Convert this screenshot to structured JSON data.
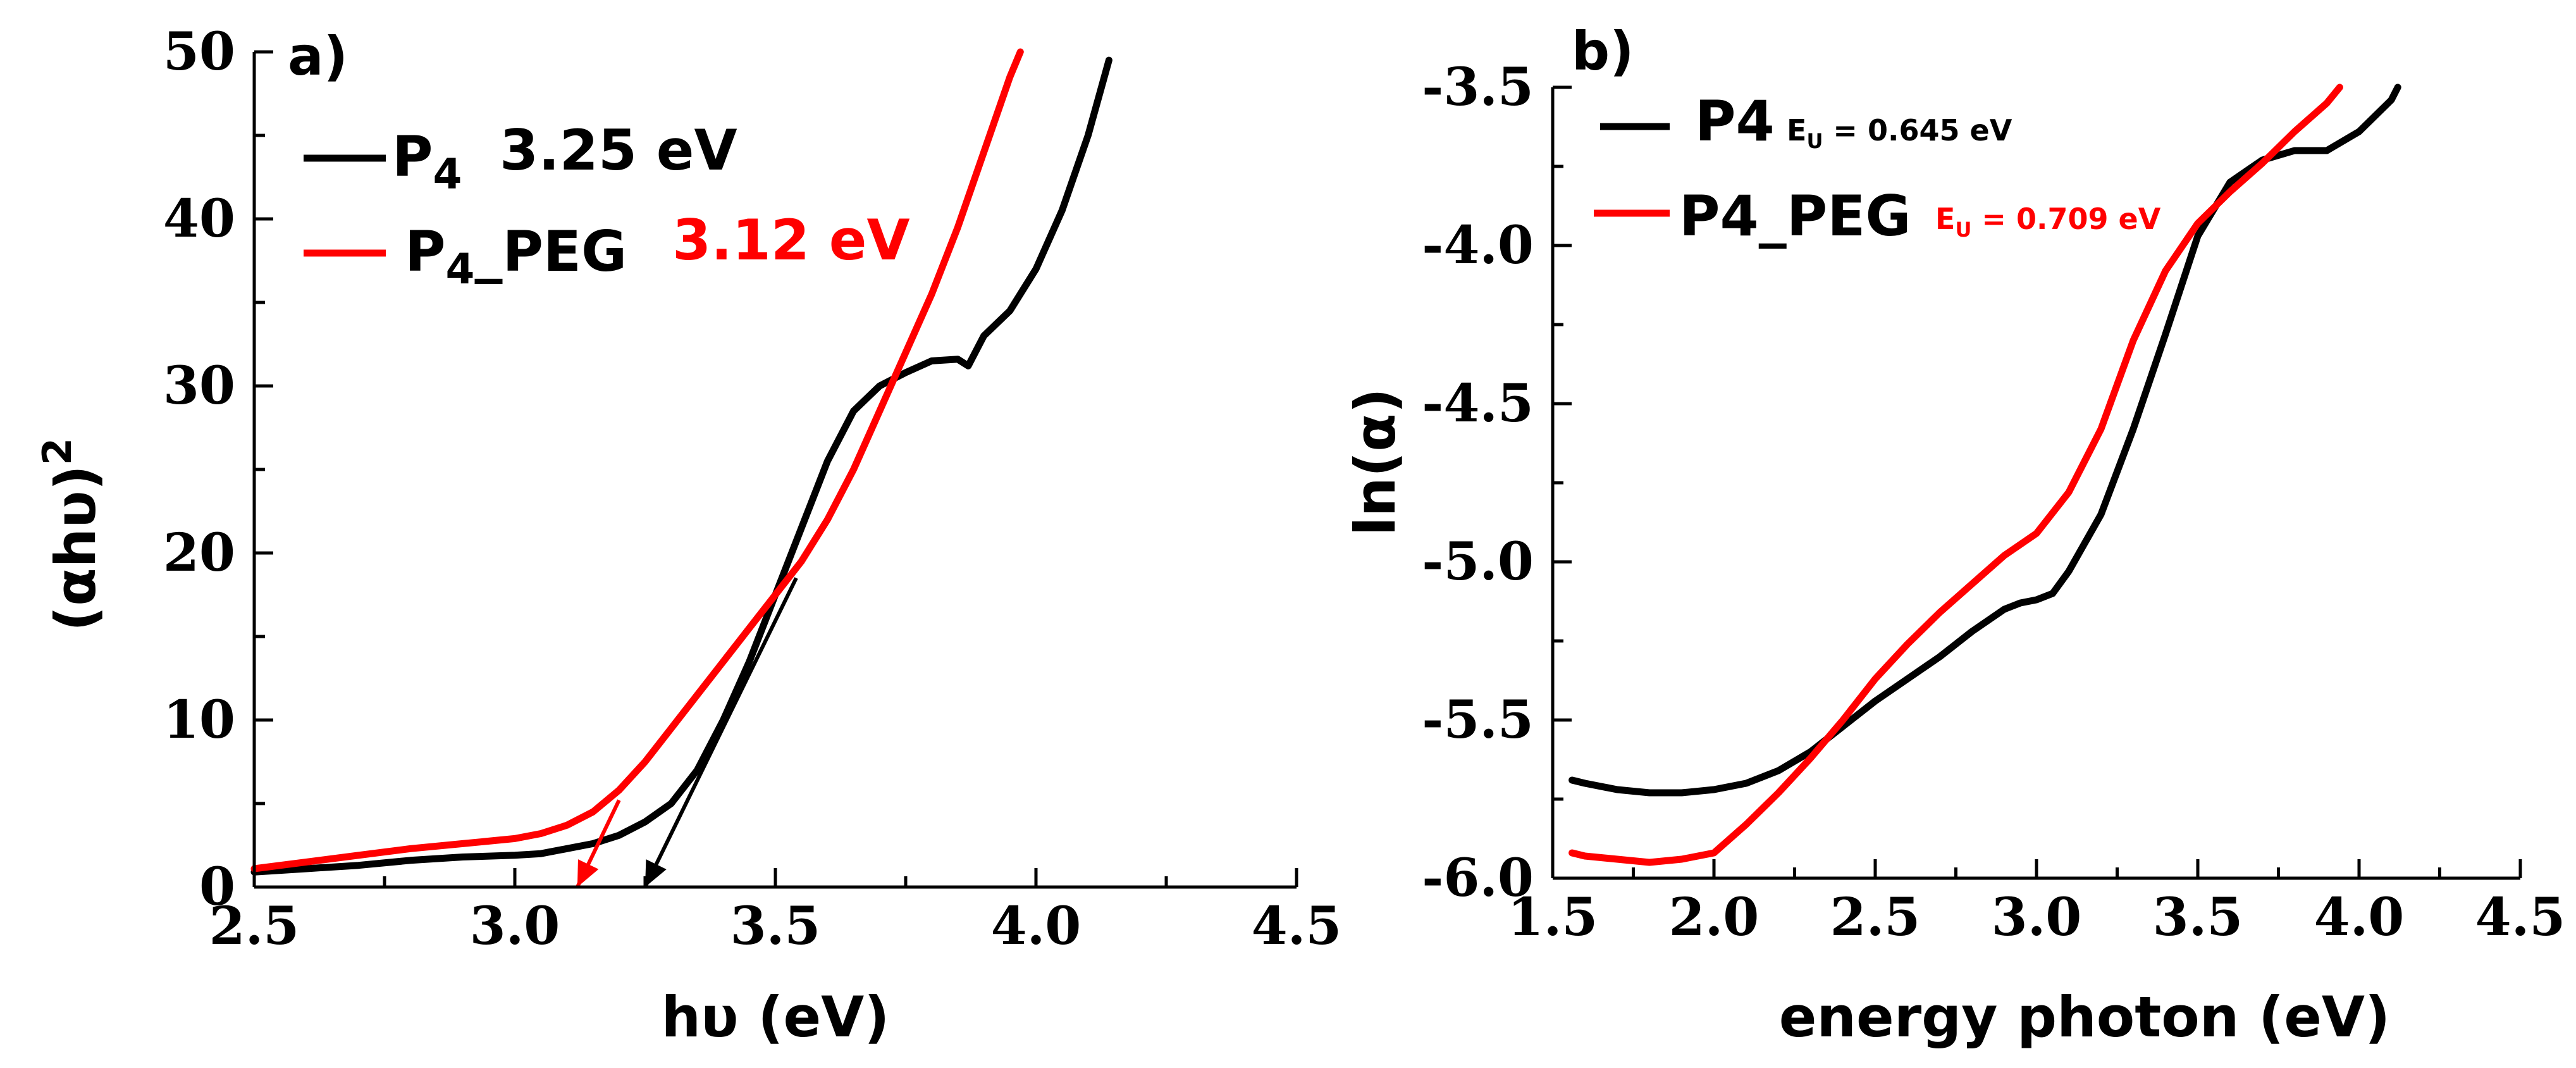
{
  "chart_data": [
    {
      "type": "line",
      "panel_label": "a)",
      "xlabel": "hυ (eV)",
      "ylabel_base": "(αhυ)",
      "ylabel_sup": "2",
      "xlim": [
        2.5,
        4.5
      ],
      "ylim": [
        0,
        50
      ],
      "xticks": [
        "2.5",
        "3.0",
        "3.5",
        "4.0",
        "4.5"
      ],
      "yticks": [
        "0",
        "10",
        "20",
        "30",
        "40",
        "50"
      ],
      "grid": false,
      "legend_position": "top-left",
      "series": [
        {
          "name": "P4",
          "name_main": "P",
          "name_sub": "4",
          "name_suffix": "",
          "value_label": "3.25 eV",
          "color": "#000000",
          "x": [
            2.5,
            2.6,
            2.7,
            2.8,
            2.9,
            3.0,
            3.05,
            3.1,
            3.15,
            3.2,
            3.25,
            3.3,
            3.35,
            3.4,
            3.45,
            3.5,
            3.55,
            3.6,
            3.65,
            3.7,
            3.75,
            3.8,
            3.85,
            3.87,
            3.9,
            3.95,
            4.0,
            4.05,
            4.1,
            4.14
          ],
          "y": [
            0.9,
            1.1,
            1.3,
            1.6,
            1.8,
            1.9,
            2.0,
            2.3,
            2.6,
            3.1,
            3.9,
            5.0,
            7.0,
            10.0,
            13.5,
            17.5,
            21.5,
            25.5,
            28.5,
            30.0,
            30.8,
            31.5,
            31.6,
            31.2,
            33.0,
            34.5,
            37.0,
            40.5,
            45.0,
            49.5
          ]
        },
        {
          "name": "P4_PEG",
          "name_main": "P",
          "name_sub": "4",
          "name_suffix": "_PEG",
          "value_label": "3.12 eV",
          "color": "#ff0000",
          "x": [
            2.5,
            2.6,
            2.7,
            2.8,
            2.9,
            3.0,
            3.05,
            3.1,
            3.15,
            3.2,
            3.25,
            3.3,
            3.35,
            3.4,
            3.45,
            3.5,
            3.55,
            3.6,
            3.65,
            3.7,
            3.75,
            3.8,
            3.85,
            3.9,
            3.95,
            3.97
          ],
          "y": [
            1.1,
            1.5,
            1.9,
            2.3,
            2.6,
            2.9,
            3.2,
            3.7,
            4.5,
            5.8,
            7.5,
            9.5,
            11.5,
            13.5,
            15.5,
            17.5,
            19.5,
            22.0,
            25.0,
            28.5,
            32.0,
            35.5,
            39.5,
            44.0,
            48.5,
            50.0
          ]
        }
      ],
      "tangent_lines": [
        {
          "series": "P4",
          "color": "#000000",
          "from": [
            3.54,
            18.5
          ],
          "to": [
            3.25,
            0
          ]
        },
        {
          "series": "P4_PEG",
          "color": "#ff0000",
          "from": [
            3.2,
            5.2
          ],
          "to": [
            3.12,
            0
          ]
        }
      ]
    },
    {
      "type": "line",
      "panel_label": "b)",
      "xlabel": "energy photon (eV)",
      "ylabel": "ln(α)",
      "xlim": [
        1.5,
        4.5
      ],
      "ylim": [
        -6.0,
        -3.5
      ],
      "xticks": [
        "1.5",
        "2.0",
        "2.5",
        "3.0",
        "3.5",
        "4.0",
        "4.5"
      ],
      "yticks": [
        "-6.0",
        "-5.5",
        "-5.0",
        "-4.5",
        "-4.0",
        "-3.5"
      ],
      "grid": false,
      "legend_position": "top-left",
      "series": [
        {
          "name": "P4",
          "name_main": "P4",
          "eu_prefix": "E",
          "eu_sub": "U",
          "eu_value": " = 0.645 eV",
          "color": "#000000",
          "x": [
            1.56,
            1.6,
            1.7,
            1.8,
            1.9,
            2.0,
            2.1,
            2.2,
            2.3,
            2.4,
            2.5,
            2.6,
            2.7,
            2.8,
            2.9,
            2.95,
            3.0,
            3.05,
            3.1,
            3.2,
            3.3,
            3.4,
            3.5,
            3.6,
            3.7,
            3.8,
            3.9,
            4.0,
            4.1,
            4.12
          ],
          "y": [
            -5.69,
            -5.7,
            -5.72,
            -5.73,
            -5.73,
            -5.72,
            -5.7,
            -5.66,
            -5.6,
            -5.52,
            -5.44,
            -5.37,
            -5.3,
            -5.22,
            -5.15,
            -5.13,
            -5.12,
            -5.1,
            -5.03,
            -4.85,
            -4.58,
            -4.28,
            -3.97,
            -3.8,
            -3.73,
            -3.7,
            -3.7,
            -3.64,
            -3.54,
            -3.5
          ]
        },
        {
          "name": "P4_PEG",
          "name_main": "P4_PEG",
          "eu_prefix": "E",
          "eu_sub": "U",
          "eu_value": " =  0.709 eV",
          "color": "#ff0000",
          "x": [
            1.56,
            1.6,
            1.7,
            1.8,
            1.9,
            2.0,
            2.1,
            2.2,
            2.3,
            2.4,
            2.5,
            2.6,
            2.7,
            2.8,
            2.9,
            3.0,
            3.1,
            3.2,
            3.3,
            3.4,
            3.5,
            3.6,
            3.7,
            3.8,
            3.9,
            3.94
          ],
          "y": [
            -5.92,
            -5.93,
            -5.94,
            -5.95,
            -5.94,
            -5.92,
            -5.83,
            -5.73,
            -5.62,
            -5.5,
            -5.37,
            -5.26,
            -5.16,
            -5.07,
            -4.98,
            -4.91,
            -4.78,
            -4.58,
            -4.3,
            -4.08,
            -3.93,
            -3.83,
            -3.74,
            -3.64,
            -3.55,
            -3.5
          ]
        }
      ]
    }
  ]
}
